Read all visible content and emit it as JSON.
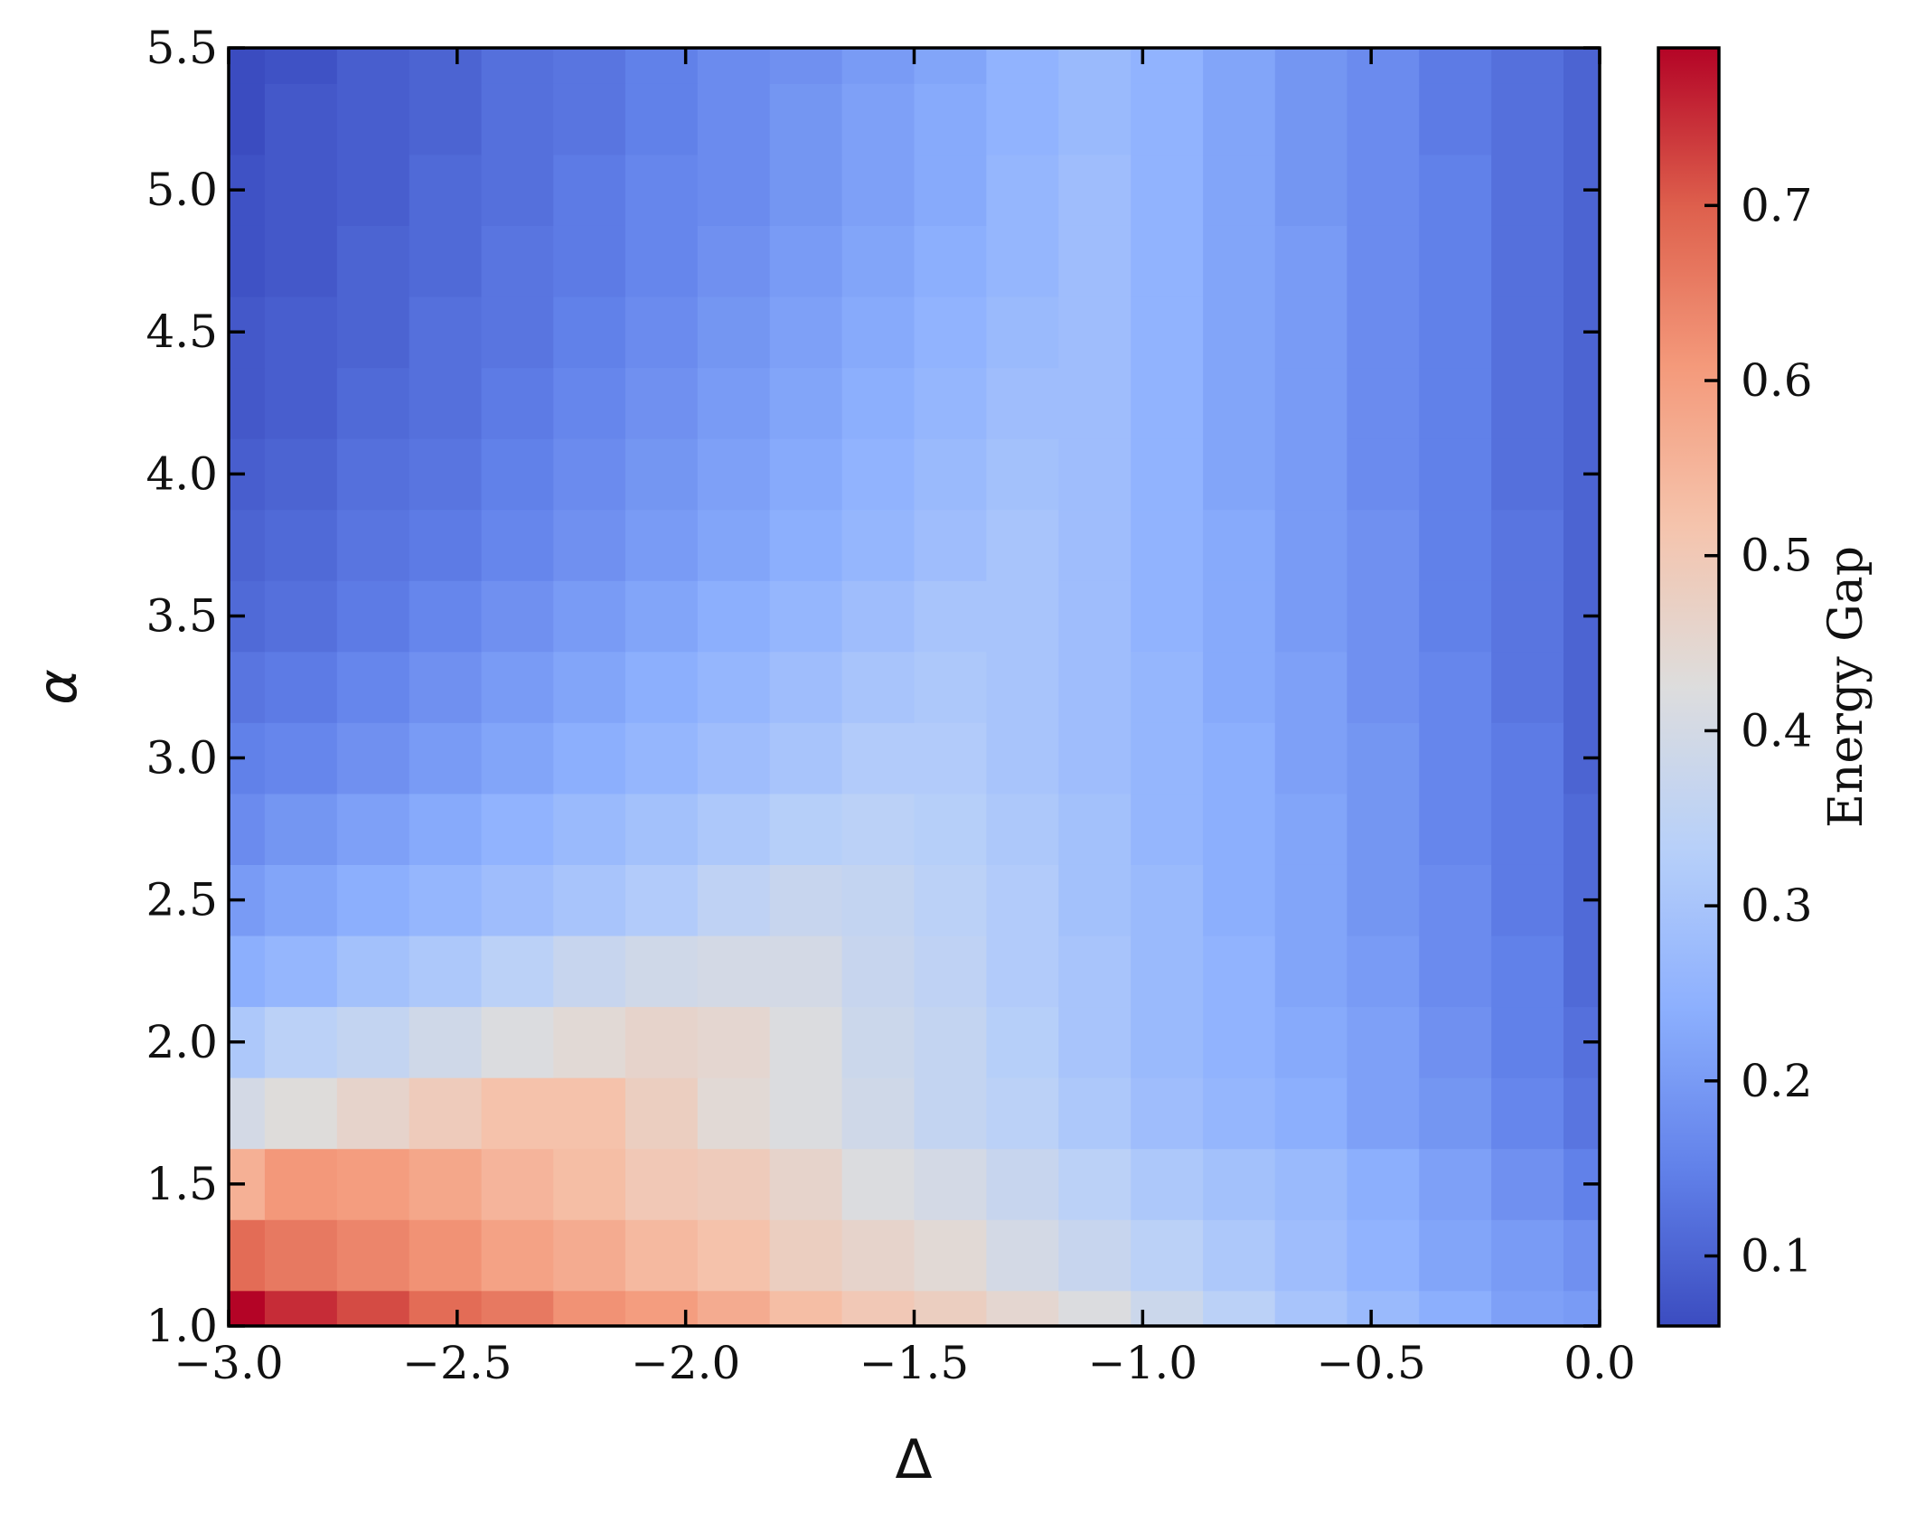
{
  "chart_data": {
    "type": "heatmap",
    "title": "",
    "xlabel": "Δ",
    "ylabel": "α",
    "colorbar_label": "Energy Gap",
    "colormap": "coolwarm",
    "xlim": [
      -3.0,
      0.0
    ],
    "ylim": [
      1.0,
      5.5
    ],
    "vmin": 0.06,
    "vmax": 0.79,
    "x_ticks": [
      -3.0,
      -2.5,
      -2.0,
      -1.5,
      -1.0,
      -0.5,
      0.0
    ],
    "x_tick_labels": [
      "−3.0",
      "−2.5",
      "−2.0",
      "−1.5",
      "−1.0",
      "−0.5",
      "0.0"
    ],
    "y_ticks": [
      1.0,
      1.5,
      2.0,
      2.5,
      3.0,
      3.5,
      4.0,
      4.5,
      5.0,
      5.5
    ],
    "y_tick_labels": [
      "1.0",
      "1.5",
      "2.0",
      "2.5",
      "3.0",
      "3.5",
      "4.0",
      "4.5",
      "5.0",
      "5.5"
    ],
    "colorbar_ticks": [
      0.1,
      0.2,
      0.3,
      0.4,
      0.5,
      0.6,
      0.7
    ],
    "colorbar_tick_labels": [
      "0.1",
      "0.2",
      "0.3",
      "0.4",
      "0.5",
      "0.6",
      "0.7"
    ],
    "x_centers": [
      -3.0,
      -2.842,
      -2.684,
      -2.526,
      -2.368,
      -2.211,
      -2.053,
      -1.895,
      -1.737,
      -1.579,
      -1.421,
      -1.263,
      -1.105,
      -0.947,
      -0.789,
      -0.632,
      -0.474,
      -0.316,
      -0.158,
      0.0
    ],
    "y_centers": [
      1.0,
      1.25,
      1.5,
      1.75,
      2.0,
      2.25,
      2.5,
      2.75,
      3.0,
      3.25,
      3.5,
      3.75,
      4.0,
      4.25,
      4.5,
      4.75,
      5.0,
      5.25,
      5.5
    ],
    "z": [
      [
        0.79,
        0.75,
        0.72,
        0.68,
        0.66,
        0.62,
        0.6,
        0.57,
        0.53,
        0.5,
        0.48,
        0.45,
        0.42,
        0.38,
        0.34,
        0.3,
        0.27,
        0.24,
        0.21,
        0.2
      ],
      [
        0.68,
        0.66,
        0.64,
        0.62,
        0.59,
        0.57,
        0.54,
        0.52,
        0.48,
        0.46,
        0.44,
        0.4,
        0.37,
        0.34,
        0.31,
        0.28,
        0.25,
        0.22,
        0.2,
        0.18
      ],
      [
        0.56,
        0.61,
        0.6,
        0.58,
        0.55,
        0.53,
        0.5,
        0.49,
        0.46,
        0.42,
        0.4,
        0.37,
        0.34,
        0.31,
        0.29,
        0.27,
        0.24,
        0.21,
        0.18,
        0.15
      ],
      [
        0.4,
        0.43,
        0.46,
        0.49,
        0.52,
        0.52,
        0.48,
        0.44,
        0.42,
        0.39,
        0.36,
        0.34,
        0.31,
        0.28,
        0.26,
        0.24,
        0.21,
        0.19,
        0.16,
        0.13
      ],
      [
        0.31,
        0.34,
        0.36,
        0.39,
        0.42,
        0.44,
        0.46,
        0.45,
        0.42,
        0.38,
        0.36,
        0.33,
        0.3,
        0.27,
        0.25,
        0.23,
        0.21,
        0.18,
        0.15,
        0.12
      ],
      [
        0.24,
        0.26,
        0.29,
        0.31,
        0.34,
        0.37,
        0.39,
        0.4,
        0.4,
        0.37,
        0.35,
        0.32,
        0.3,
        0.27,
        0.25,
        0.22,
        0.2,
        0.17,
        0.15,
        0.11
      ],
      [
        0.2,
        0.22,
        0.24,
        0.26,
        0.28,
        0.3,
        0.32,
        0.35,
        0.37,
        0.36,
        0.34,
        0.32,
        0.29,
        0.27,
        0.24,
        0.22,
        0.19,
        0.17,
        0.14,
        0.11
      ],
      [
        0.17,
        0.19,
        0.21,
        0.23,
        0.25,
        0.27,
        0.29,
        0.31,
        0.33,
        0.34,
        0.33,
        0.31,
        0.29,
        0.26,
        0.24,
        0.22,
        0.19,
        0.16,
        0.14,
        0.11
      ],
      [
        0.15,
        0.16,
        0.18,
        0.2,
        0.22,
        0.24,
        0.26,
        0.28,
        0.3,
        0.32,
        0.32,
        0.3,
        0.28,
        0.26,
        0.24,
        0.21,
        0.19,
        0.16,
        0.14,
        0.1
      ],
      [
        0.13,
        0.14,
        0.16,
        0.18,
        0.2,
        0.22,
        0.24,
        0.26,
        0.28,
        0.3,
        0.31,
        0.3,
        0.28,
        0.26,
        0.23,
        0.21,
        0.18,
        0.16,
        0.13,
        0.1
      ],
      [
        0.11,
        0.12,
        0.14,
        0.16,
        0.18,
        0.2,
        0.22,
        0.24,
        0.26,
        0.28,
        0.3,
        0.3,
        0.28,
        0.25,
        0.23,
        0.2,
        0.18,
        0.15,
        0.13,
        0.1
      ],
      [
        0.1,
        0.11,
        0.13,
        0.14,
        0.16,
        0.18,
        0.2,
        0.22,
        0.24,
        0.26,
        0.28,
        0.3,
        0.28,
        0.25,
        0.23,
        0.2,
        0.18,
        0.15,
        0.13,
        0.1
      ],
      [
        0.09,
        0.1,
        0.12,
        0.13,
        0.15,
        0.17,
        0.19,
        0.21,
        0.23,
        0.25,
        0.27,
        0.29,
        0.28,
        0.25,
        0.22,
        0.2,
        0.17,
        0.15,
        0.12,
        0.1
      ],
      [
        0.08,
        0.09,
        0.11,
        0.12,
        0.14,
        0.16,
        0.18,
        0.2,
        0.22,
        0.24,
        0.26,
        0.28,
        0.28,
        0.25,
        0.22,
        0.2,
        0.17,
        0.15,
        0.12,
        0.1
      ],
      [
        0.08,
        0.09,
        0.1,
        0.12,
        0.13,
        0.15,
        0.17,
        0.19,
        0.21,
        0.23,
        0.25,
        0.27,
        0.28,
        0.25,
        0.22,
        0.2,
        0.17,
        0.15,
        0.12,
        0.1
      ],
      [
        0.07,
        0.08,
        0.1,
        0.11,
        0.13,
        0.14,
        0.16,
        0.18,
        0.2,
        0.22,
        0.24,
        0.26,
        0.28,
        0.25,
        0.22,
        0.2,
        0.17,
        0.15,
        0.12,
        0.1
      ],
      [
        0.07,
        0.08,
        0.09,
        0.11,
        0.12,
        0.14,
        0.16,
        0.17,
        0.19,
        0.21,
        0.23,
        0.26,
        0.28,
        0.25,
        0.22,
        0.19,
        0.17,
        0.15,
        0.12,
        0.1
      ],
      [
        0.06,
        0.08,
        0.09,
        0.1,
        0.12,
        0.13,
        0.15,
        0.17,
        0.19,
        0.21,
        0.23,
        0.25,
        0.27,
        0.25,
        0.22,
        0.19,
        0.17,
        0.14,
        0.12,
        0.1
      ],
      [
        0.06,
        0.07,
        0.09,
        0.1,
        0.12,
        0.13,
        0.15,
        0.17,
        0.18,
        0.2,
        0.22,
        0.25,
        0.27,
        0.25,
        0.22,
        0.19,
        0.17,
        0.14,
        0.12,
        0.1
      ]
    ]
  }
}
